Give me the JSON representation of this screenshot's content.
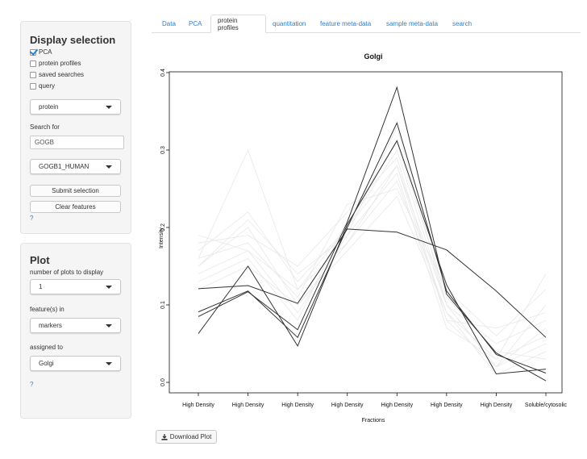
{
  "display_panel": {
    "title": "Display selection",
    "checkboxes": [
      {
        "label": "PCA",
        "checked": true
      },
      {
        "label": "protein profiles",
        "checked": false
      },
      {
        "label": "saved searches",
        "checked": false
      },
      {
        "label": "query",
        "checked": false
      }
    ],
    "search_type_select": "protein",
    "search_label": "Search for",
    "search_value": "GOGB",
    "match_select": "GOGB1_HUMAN",
    "submit_label": "Submit selection",
    "clear_label": "Clear features",
    "help": "?"
  },
  "plot_panel": {
    "title": "Plot",
    "num_plots_label": "number of plots to display",
    "num_plots_value": "1",
    "features_label": "feature(s) in",
    "features_value": "markers",
    "assigned_label": "assigned to",
    "assigned_value": "Golgi",
    "help": "?"
  },
  "tabs": [
    {
      "label": "Data",
      "active": false
    },
    {
      "label": "PCA",
      "active": false
    },
    {
      "label": "protein profiles",
      "active": true
    },
    {
      "label": "quantitation",
      "active": false
    },
    {
      "label": "feature meta-data",
      "active": false
    },
    {
      "label": "sample meta-data",
      "active": false
    },
    {
      "label": "search",
      "active": false
    }
  ],
  "download_label": "Download Plot",
  "colors": {
    "link": "#2a7fcf",
    "line": "#333333",
    "background_line": "#e8e8e8"
  },
  "chart_data": {
    "type": "line",
    "title": "Golgi",
    "xlabel": "Fractions",
    "ylabel": "Intensity",
    "categories": [
      "High Density",
      "High Density",
      "High Density",
      "High Density",
      "High Density",
      "High Density",
      "High Density",
      "Soluble/cytosolic"
    ],
    "yticks": [
      "0.0",
      "0.1",
      "0.2",
      "0.3",
      "0.4"
    ],
    "ylim": [
      0,
      0.4
    ],
    "grid": false,
    "series": [
      {
        "values": [
          0.121,
          0.125,
          0.102,
          0.198,
          0.194,
          0.171,
          0.118,
          0.058
        ]
      },
      {
        "values": [
          0.085,
          0.117,
          0.068,
          0.207,
          0.381,
          0.114,
          0.038,
          0.002
        ]
      },
      {
        "values": [
          0.091,
          0.118,
          0.058,
          0.2,
          0.335,
          0.118,
          0.036,
          0.012
        ]
      },
      {
        "values": [
          0.063,
          0.15,
          0.047,
          0.204,
          0.312,
          0.126,
          0.011,
          0.017
        ]
      }
    ],
    "background_series": [
      [
        0.16,
        0.3,
        0.12,
        0.18,
        0.28,
        0.1,
        0.02,
        0.05
      ],
      [
        0.15,
        0.2,
        0.1,
        0.18,
        0.26,
        0.09,
        0.03,
        0.14
      ],
      [
        0.18,
        0.19,
        0.15,
        0.22,
        0.29,
        0.08,
        0.02,
        0.1
      ],
      [
        0.14,
        0.17,
        0.09,
        0.19,
        0.27,
        0.07,
        0.03,
        0.06
      ],
      [
        0.17,
        0.22,
        0.13,
        0.2,
        0.3,
        0.1,
        0.05,
        0.08
      ],
      [
        0.13,
        0.16,
        0.08,
        0.21,
        0.31,
        0.11,
        0.04,
        0.03
      ],
      [
        0.16,
        0.18,
        0.11,
        0.23,
        0.25,
        0.12,
        0.06,
        0.12
      ],
      [
        0.12,
        0.15,
        0.1,
        0.17,
        0.24,
        0.09,
        0.01,
        0.04
      ],
      [
        0.15,
        0.21,
        0.14,
        0.19,
        0.33,
        0.1,
        0.02,
        0.07
      ],
      [
        0.19,
        0.17,
        0.12,
        0.2,
        0.28,
        0.08,
        0.07,
        0.09
      ]
    ]
  }
}
